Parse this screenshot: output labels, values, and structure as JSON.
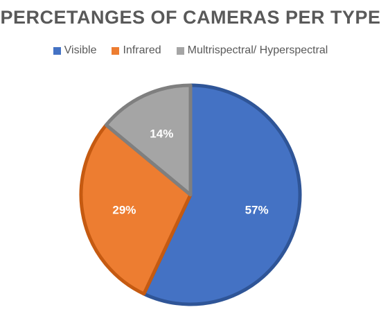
{
  "chart_data": {
    "type": "pie",
    "title": "PERCETANGES OF CAMERAS PER TYPE",
    "legend_position": "top",
    "categories": [
      "Visible",
      "Infrared",
      "Multrispectral/ Hyperspectral"
    ],
    "values": [
      57,
      29,
      14
    ],
    "data_labels": [
      "57%",
      "29%",
      "14%"
    ],
    "colors": [
      "#4472C4",
      "#ED7D31",
      "#A5A5A5"
    ],
    "edge_colors": [
      "#2F5597",
      "#C55A11",
      "#7F7F7F"
    ]
  }
}
